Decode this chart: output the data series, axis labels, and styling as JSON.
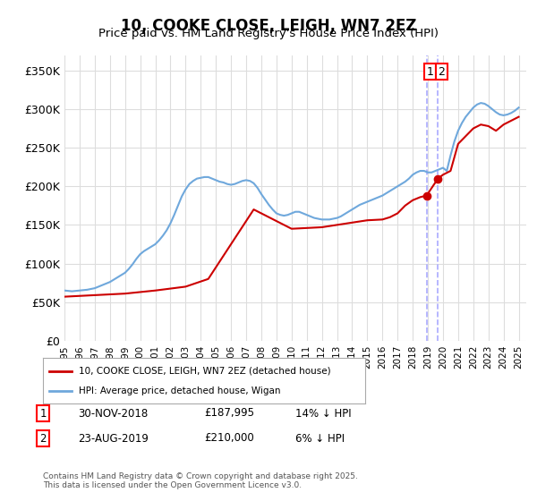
{
  "title": "10, COOKE CLOSE, LEIGH, WN7 2EZ",
  "subtitle": "Price paid vs. HM Land Registry's House Price Index (HPI)",
  "ylabel_ticks": [
    "£0",
    "£50K",
    "£100K",
    "£150K",
    "£200K",
    "£250K",
    "£300K",
    "£350K"
  ],
  "ylim": [
    0,
    370000
  ],
  "xlim_start": 1995.0,
  "xlim_end": 2025.5,
  "hpi_color": "#6fa8dc",
  "price_color": "#cc0000",
  "dashed_line_color": "#aaaaff",
  "grid_color": "#dddddd",
  "background_plot": "#ffffff",
  "background_fig": "#ffffff",
  "legend_label_red": "10, COOKE CLOSE, LEIGH, WN7 2EZ (detached house)",
  "legend_label_blue": "HPI: Average price, detached house, Wigan",
  "annotation1_label": "1",
  "annotation1_date": "30-NOV-2018",
  "annotation1_price": "£187,995",
  "annotation1_hpi": "14% ↓ HPI",
  "annotation2_label": "2",
  "annotation2_date": "23-AUG-2019",
  "annotation2_price": "£210,000",
  "annotation2_hpi": "6% ↓ HPI",
  "footer": "Contains HM Land Registry data © Crown copyright and database right 2025.\nThis data is licensed under the Open Government Licence v3.0.",
  "hpi_x": [
    1995.0,
    1995.25,
    1995.5,
    1995.75,
    1996.0,
    1996.25,
    1996.5,
    1996.75,
    1997.0,
    1997.25,
    1997.5,
    1997.75,
    1998.0,
    1998.25,
    1998.5,
    1998.75,
    1999.0,
    1999.25,
    1999.5,
    1999.75,
    2000.0,
    2000.25,
    2000.5,
    2000.75,
    2001.0,
    2001.25,
    2001.5,
    2001.75,
    2002.0,
    2002.25,
    2002.5,
    2002.75,
    2003.0,
    2003.25,
    2003.5,
    2003.75,
    2004.0,
    2004.25,
    2004.5,
    2004.75,
    2005.0,
    2005.25,
    2005.5,
    2005.75,
    2006.0,
    2006.25,
    2006.5,
    2006.75,
    2007.0,
    2007.25,
    2007.5,
    2007.75,
    2008.0,
    2008.25,
    2008.5,
    2008.75,
    2009.0,
    2009.25,
    2009.5,
    2009.75,
    2010.0,
    2010.25,
    2010.5,
    2010.75,
    2011.0,
    2011.25,
    2011.5,
    2011.75,
    2012.0,
    2012.25,
    2012.5,
    2012.75,
    2013.0,
    2013.25,
    2013.5,
    2013.75,
    2014.0,
    2014.25,
    2014.5,
    2014.75,
    2015.0,
    2015.25,
    2015.5,
    2015.75,
    2016.0,
    2016.25,
    2016.5,
    2016.75,
    2017.0,
    2017.25,
    2017.5,
    2017.75,
    2018.0,
    2018.25,
    2018.5,
    2018.75,
    2019.0,
    2019.25,
    2019.5,
    2019.75,
    2020.0,
    2020.25,
    2020.5,
    2020.75,
    2021.0,
    2021.25,
    2021.5,
    2021.75,
    2022.0,
    2022.25,
    2022.5,
    2022.75,
    2023.0,
    2023.25,
    2023.5,
    2023.75,
    2024.0,
    2024.25,
    2024.5,
    2024.75,
    2025.0
  ],
  "hpi_y": [
    65000,
    64500,
    64000,
    64500,
    65000,
    65500,
    66000,
    67000,
    68000,
    70000,
    72000,
    74000,
    76000,
    79000,
    82000,
    85000,
    88000,
    93000,
    99000,
    106000,
    112000,
    116000,
    119000,
    122000,
    125000,
    130000,
    136000,
    143000,
    152000,
    163000,
    175000,
    187000,
    196000,
    203000,
    207000,
    210000,
    211000,
    212000,
    212000,
    210000,
    208000,
    206000,
    205000,
    203000,
    202000,
    203000,
    205000,
    207000,
    208000,
    207000,
    204000,
    198000,
    190000,
    183000,
    176000,
    170000,
    165000,
    163000,
    162000,
    163000,
    165000,
    167000,
    167000,
    165000,
    163000,
    161000,
    159000,
    158000,
    157000,
    157000,
    157000,
    158000,
    159000,
    161000,
    164000,
    167000,
    170000,
    173000,
    176000,
    178000,
    180000,
    182000,
    184000,
    186000,
    188000,
    191000,
    194000,
    197000,
    200000,
    203000,
    206000,
    210000,
    215000,
    218000,
    220000,
    220000,
    218000,
    218000,
    220000,
    222000,
    224000,
    220000,
    240000,
    258000,
    272000,
    282000,
    290000,
    296000,
    302000,
    306000,
    308000,
    307000,
    304000,
    300000,
    296000,
    293000,
    292000,
    293000,
    295000,
    298000,
    302000
  ],
  "price_x": [
    1995.0,
    1996.0,
    1998.0,
    1999.0,
    2000.0,
    2001.0,
    2003.0,
    2004.5,
    2007.5,
    2010.0,
    2012.0,
    2013.0,
    2014.0,
    2015.0,
    2016.0,
    2016.5,
    2017.0,
    2017.5,
    2018.0,
    2018.5,
    2018.917,
    2019.667,
    2020.0,
    2020.5,
    2021.0,
    2021.5,
    2022.0,
    2022.5,
    2023.0,
    2023.5,
    2024.0,
    2024.5,
    2025.0
  ],
  "price_y": [
    57000,
    58000,
    60000,
    61000,
    63000,
    65000,
    70000,
    80000,
    170000,
    145000,
    147000,
    150000,
    153000,
    156000,
    157000,
    160000,
    165000,
    175000,
    182000,
    186000,
    187995,
    210000,
    215000,
    220000,
    255000,
    265000,
    275000,
    280000,
    278000,
    272000,
    280000,
    285000,
    290000
  ],
  "marker1_x": 2018.917,
  "marker1_y": 187995,
  "marker2_x": 2019.667,
  "marker2_y": 210000,
  "vline1_x": 2018.917,
  "vline2_x": 2019.667
}
